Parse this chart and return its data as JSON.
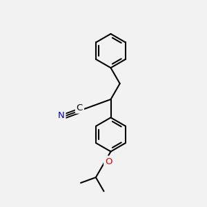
{
  "background_color": "#f2f2f2",
  "bond_color": "#000000",
  "nitrogen_color": "#0000cc",
  "oxygen_color": "#dd0000",
  "line_width": 1.5,
  "dbo": 0.013,
  "figsize": [
    3.0,
    3.0
  ],
  "dpi": 100,
  "label_N": "N",
  "label_C": "C",
  "label_O": "O",
  "font_size_atom": 9.5
}
